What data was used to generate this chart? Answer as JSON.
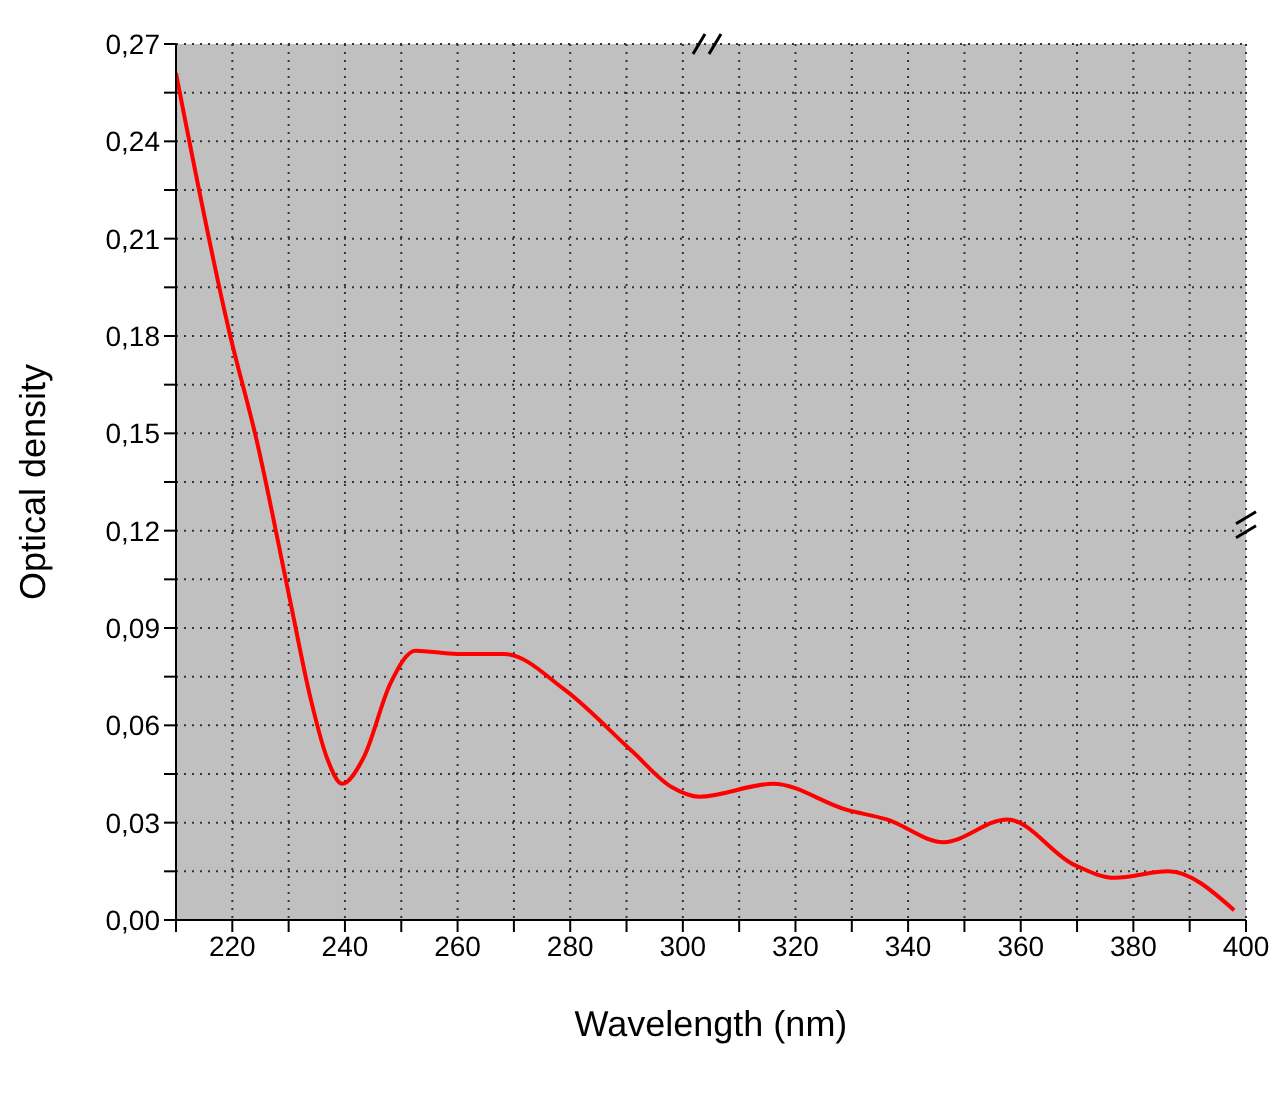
{
  "chart_data": {
    "type": "line",
    "xlabel": "Wavelength (nm)",
    "ylabel": "Optical density",
    "x": [
      210,
      219.5,
      224.3,
      230.2,
      233.8,
      236.8,
      239.5,
      243.3,
      248.1,
      252.5,
      260,
      268.3,
      279,
      291,
      298,
      302.9,
      316,
      329,
      336.2,
      346.3,
      357.6,
      369.5,
      376.7,
      386.2,
      397.9
    ],
    "series": [
      {
        "color": "#ff0000",
        "values": [
          0.261,
          0.181,
          0.148,
          0.099,
          0.069,
          0.05,
          0.042,
          0.05,
          0.073,
          0.083,
          0.082,
          0.082,
          0.071,
          0.052,
          0.041,
          0.038,
          0.042,
          0.034,
          0.031,
          0.024,
          0.031,
          0.017,
          0.013,
          0.015,
          0.003
        ]
      }
    ],
    "xlim": [
      210,
      400
    ],
    "xticks": [
      {
        "value": 210,
        "label": null
      },
      220,
      {
        "value": 230,
        "label": null
      },
      240,
      {
        "value": 250,
        "label": null
      },
      260,
      {
        "value": 270,
        "label": null
      },
      280,
      {
        "value": 290,
        "label": null
      },
      300,
      {
        "value": 310,
        "label": null
      },
      320,
      {
        "value": 330,
        "label": null
      },
      340,
      {
        "value": 350,
        "label": null
      },
      360,
      {
        "value": 370,
        "label": null
      },
      380,
      {
        "value": 390,
        "label": null
      },
      400
    ],
    "ylim": [
      0,
      0.27
    ],
    "yticks": [
      {
        "value": 0,
        "label": "0,00"
      },
      {
        "value": 0.015,
        "label": null
      },
      {
        "value": 0.03,
        "label": "0,03"
      },
      {
        "value": 0.045,
        "label": null
      },
      {
        "value": 0.06,
        "label": "0,06"
      },
      {
        "value": 0.075,
        "label": null
      },
      {
        "value": 0.09,
        "label": "0,09"
      },
      {
        "value": 0.105,
        "label": null
      },
      {
        "value": 0.12,
        "label": "0,12"
      },
      {
        "value": 0.135,
        "label": null
      },
      {
        "value": 0.15,
        "label": "0,15"
      },
      {
        "value": 0.165,
        "label": null
      },
      {
        "value": 0.18,
        "label": "0,18"
      },
      {
        "value": 0.195,
        "label": null
      },
      {
        "value": 0.21,
        "label": "0,21"
      },
      {
        "value": 0.225,
        "label": null
      },
      {
        "value": 0.24,
        "label": "0,24"
      },
      {
        "value": 0.255,
        "label": null
      },
      {
        "value": 0.27,
        "label": "0,27"
      }
    ],
    "grid": true,
    "line_style": "solid",
    "marker": "none",
    "legend": false
  }
}
